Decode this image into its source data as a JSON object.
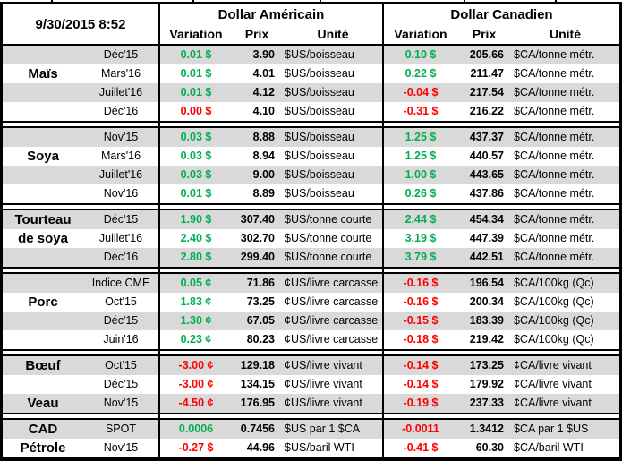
{
  "meta": {
    "timestamp": "9/30/2015 8:52"
  },
  "columns": {
    "us_group": "Dollar Américain",
    "ca_group": "Dollar Canadien",
    "variation": "Variation",
    "prix": "Prix",
    "unite": "Unité"
  },
  "colors": {
    "positive": "#00B050",
    "negative": "#FF0000",
    "row_stripe": "#D9D9D9",
    "border": "#000000"
  },
  "sections": [
    {
      "commodity": "Maïs",
      "rows": [
        {
          "label": "",
          "month": "Déc'15",
          "us_var": "0.01 $",
          "us_dir": "pos",
          "us_prix": "3.90",
          "us_unit": "$US/boisseau",
          "ca_var": "0.10 $",
          "ca_dir": "pos",
          "ca_prix": "205.66",
          "ca_unit": "$CA/tonne métr."
        },
        {
          "label": "Maïs",
          "month": "Mars'16",
          "us_var": "0.01 $",
          "us_dir": "pos",
          "us_prix": "4.01",
          "us_unit": "$US/boisseau",
          "ca_var": "0.22 $",
          "ca_dir": "pos",
          "ca_prix": "211.47",
          "ca_unit": "$CA/tonne métr."
        },
        {
          "label": "",
          "month": "Juillet'16",
          "us_var": "0.01 $",
          "us_dir": "pos",
          "us_prix": "4.12",
          "us_unit": "$US/boisseau",
          "ca_var": "-0.04 $",
          "ca_dir": "neg",
          "ca_prix": "217.54",
          "ca_unit": "$CA/tonne métr."
        },
        {
          "label": "",
          "month": "Déc'16",
          "us_var": "0.00 $",
          "us_dir": "neg",
          "us_prix": "4.10",
          "us_unit": "$US/boisseau",
          "ca_var": "-0.31 $",
          "ca_dir": "neg",
          "ca_prix": "216.22",
          "ca_unit": "$CA/tonne métr."
        }
      ]
    },
    {
      "commodity": "Soya",
      "rows": [
        {
          "label": "",
          "month": "Nov'15",
          "us_var": "0.03 $",
          "us_dir": "pos",
          "us_prix": "8.88",
          "us_unit": "$US/boisseau",
          "ca_var": "1.25 $",
          "ca_dir": "pos",
          "ca_prix": "437.37",
          "ca_unit": "$CA/tonne métr."
        },
        {
          "label": "Soya",
          "month": "Mars'16",
          "us_var": "0.03 $",
          "us_dir": "pos",
          "us_prix": "8.94",
          "us_unit": "$US/boisseau",
          "ca_var": "1.25 $",
          "ca_dir": "pos",
          "ca_prix": "440.57",
          "ca_unit": "$CA/tonne métr."
        },
        {
          "label": "",
          "month": "Juillet'16",
          "us_var": "0.03 $",
          "us_dir": "pos",
          "us_prix": "9.00",
          "us_unit": "$US/boisseau",
          "ca_var": "1.00 $",
          "ca_dir": "pos",
          "ca_prix": "443.65",
          "ca_unit": "$CA/tonne métr."
        },
        {
          "label": "",
          "month": "Nov'16",
          "us_var": "0.01 $",
          "us_dir": "pos",
          "us_prix": "8.89",
          "us_unit": "$US/boisseau",
          "ca_var": "0.26 $",
          "ca_dir": "pos",
          "ca_prix": "437.86",
          "ca_unit": "$CA/tonne métr."
        }
      ]
    },
    {
      "commodity": "Tourteau de soya",
      "rows": [
        {
          "label": "Tourteau",
          "month": "Déc'15",
          "us_var": "1.90 $",
          "us_dir": "pos",
          "us_prix": "307.40",
          "us_unit": "$US/tonne courte",
          "ca_var": "2.44 $",
          "ca_dir": "pos",
          "ca_prix": "454.34",
          "ca_unit": "$CA/tonne métr."
        },
        {
          "label": "de soya",
          "month": "Juillet'16",
          "us_var": "2.40 $",
          "us_dir": "pos",
          "us_prix": "302.70",
          "us_unit": "$US/tonne courte",
          "ca_var": "3.19 $",
          "ca_dir": "pos",
          "ca_prix": "447.39",
          "ca_unit": "$CA/tonne métr."
        },
        {
          "label": "",
          "month": "Déc'16",
          "us_var": "2.80 $",
          "us_dir": "pos",
          "us_prix": "299.40",
          "us_unit": "$US/tonne courte",
          "ca_var": "3.79 $",
          "ca_dir": "pos",
          "ca_prix": "442.51",
          "ca_unit": "$CA/tonne métr."
        }
      ]
    },
    {
      "commodity": "Porc",
      "rows": [
        {
          "label": "",
          "month": "Indice CME",
          "us_var": "0.05 ¢",
          "us_dir": "pos",
          "us_prix": "71.86",
          "us_unit": "¢US/livre carcasse",
          "ca_var": "-0.16 $",
          "ca_dir": "neg",
          "ca_prix": "196.54",
          "ca_unit": "$CA/100kg (Qc)"
        },
        {
          "label": "Porc",
          "month": "Oct'15",
          "us_var": "1.83 ¢",
          "us_dir": "pos",
          "us_prix": "73.25",
          "us_unit": "¢US/livre carcasse",
          "ca_var": "-0.16 $",
          "ca_dir": "neg",
          "ca_prix": "200.34",
          "ca_unit": "$CA/100kg (Qc)"
        },
        {
          "label": "",
          "month": "Déc'15",
          "us_var": "1.30 ¢",
          "us_dir": "pos",
          "us_prix": "67.05",
          "us_unit": "¢US/livre carcasse",
          "ca_var": "-0.15 $",
          "ca_dir": "neg",
          "ca_prix": "183.39",
          "ca_unit": "$CA/100kg (Qc)"
        },
        {
          "label": "",
          "month": "Juin'16",
          "us_var": "0.23 ¢",
          "us_dir": "pos",
          "us_prix": "80.23",
          "us_unit": "¢US/livre carcasse",
          "ca_var": "-0.18 $",
          "ca_dir": "neg",
          "ca_prix": "219.42",
          "ca_unit": "$CA/100kg (Qc)"
        }
      ]
    },
    {
      "commodity": "Bœuf / Veau",
      "rows": [
        {
          "label": "Bœuf",
          "month": "Oct'15",
          "us_var": "-3.00 ¢",
          "us_dir": "neg",
          "us_prix": "129.18",
          "us_unit": "¢US/livre vivant",
          "ca_var": "-0.14 $",
          "ca_dir": "neg",
          "ca_prix": "173.25",
          "ca_unit": "¢CA/livre vivant"
        },
        {
          "label": "",
          "month": "Déc'15",
          "us_var": "-3.00 ¢",
          "us_dir": "neg",
          "us_prix": "134.15",
          "us_unit": "¢US/livre vivant",
          "ca_var": "-0.14 $",
          "ca_dir": "neg",
          "ca_prix": "179.92",
          "ca_unit": "¢CA/livre vivant"
        },
        {
          "label": "Veau",
          "month": "Nov'15",
          "us_var": "-4.50 ¢",
          "us_dir": "neg",
          "us_prix": "176.95",
          "us_unit": "¢US/livre vivant",
          "ca_var": "-0.19 $",
          "ca_dir": "neg",
          "ca_prix": "237.33",
          "ca_unit": "¢CA/livre vivant"
        }
      ]
    },
    {
      "commodity": "CAD / Pétrole",
      "rows": [
        {
          "label": "CAD",
          "month": "SPOT",
          "us_var": "0.0006",
          "us_dir": "pos",
          "us_prix": "0.7456",
          "us_unit": "$US par 1 $CA",
          "ca_var": "-0.0011",
          "ca_dir": "neg",
          "ca_prix": "1.3412",
          "ca_unit": "$CA par 1 $US"
        },
        {
          "label": "Pétrole",
          "month": "Nov'15",
          "us_var": "-0.27 $",
          "us_dir": "neg",
          "us_prix": "44.96",
          "us_unit": "$US/baril WTI",
          "ca_var": "-0.41 $",
          "ca_dir": "neg",
          "ca_prix": "60.30",
          "ca_unit": "$CA/baril WTI"
        }
      ]
    }
  ]
}
